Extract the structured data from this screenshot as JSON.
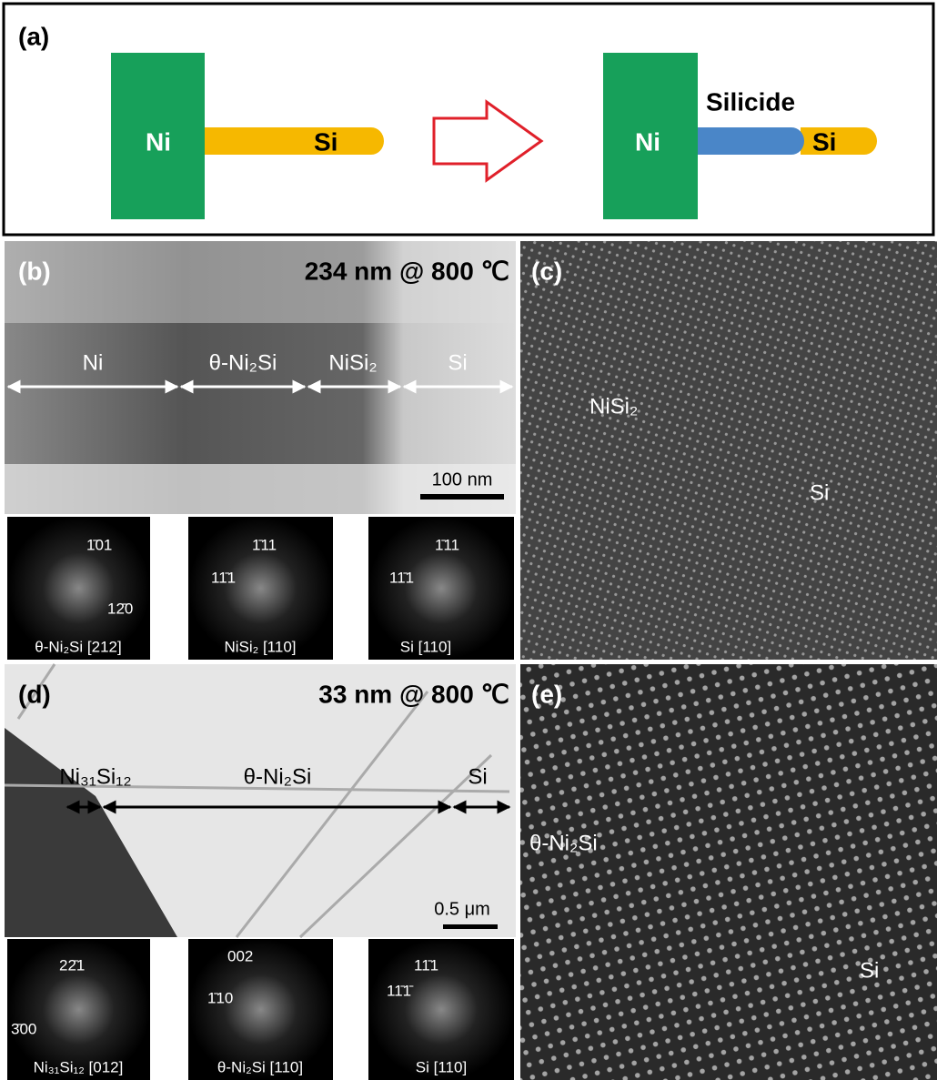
{
  "panels": {
    "a": {
      "label": "(a)",
      "before": {
        "ni": "Ni",
        "si": "Si"
      },
      "after": {
        "ni": "Ni",
        "silicide": "Silicide",
        "si": "Si"
      }
    },
    "b": {
      "label": "(b)",
      "condition": "234 nm @ 800 ℃",
      "segments": [
        "Ni",
        "θ-Ni₂Si",
        "NiSi₂",
        "Si"
      ],
      "scale_bar": "100 nm",
      "fft": [
        {
          "spots": [
            "1̄01",
            "12̄0"
          ],
          "zone": "θ-Ni₂Si [212]"
        },
        {
          "spots": [
            "1̄11",
            "11̄1"
          ],
          "zone": "NiSi₂ [110]"
        },
        {
          "spots": [
            "1̄11",
            "11̄1"
          ],
          "zone": "Si [110]"
        }
      ]
    },
    "c": {
      "label": "(c)",
      "phases": [
        "NiSi₂",
        "Si"
      ]
    },
    "d": {
      "label": "(d)",
      "condition": "33 nm @ 800 ℃",
      "segments": [
        "Ni₃₁Si₁₂",
        "θ-Ni₂Si",
        "Si"
      ],
      "scale_bar": "0.5 μm",
      "fft": [
        {
          "spots": [
            "22̄1",
            "3̄00"
          ],
          "zone": "Ni₃₁Si₁₂ [012]"
        },
        {
          "spots": [
            "002",
            "1̄10"
          ],
          "zone": "θ-Ni₂Si [110]"
        },
        {
          "spots": [
            "11̄1",
            "11̄1̄"
          ],
          "zone": "Si [110]"
        }
      ]
    },
    "e": {
      "label": "(e)",
      "phases": [
        "θ-Ni₂Si",
        "Si"
      ]
    }
  }
}
